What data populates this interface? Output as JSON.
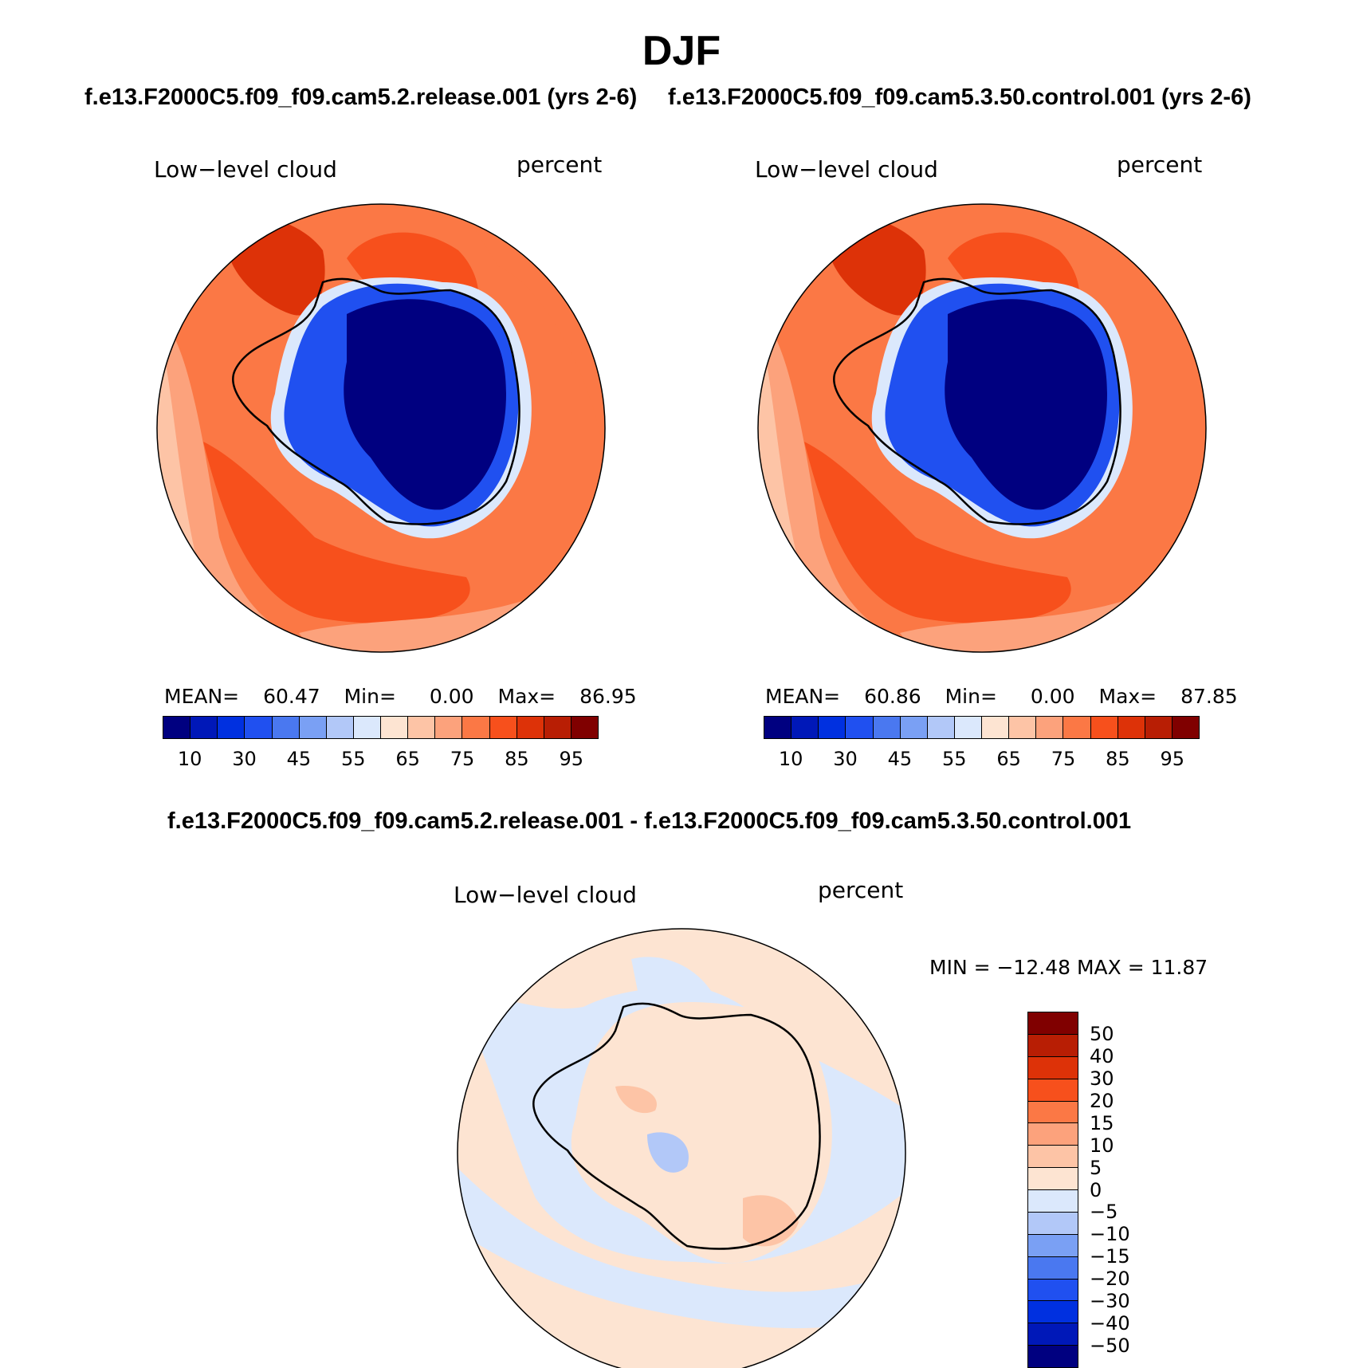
{
  "title": "DJF",
  "panels": {
    "left": {
      "case": "f.e13.F2000C5.f09_f09.cam5.2.release.001 (yrs 2-6)",
      "variable": "Low−level cloud",
      "units": "percent",
      "mean_label": "MEAN=",
      "mean": "60.47",
      "min_label": "Min=",
      "min": "0.00",
      "max_label": "Max=",
      "max": "86.95"
    },
    "right": {
      "case": "f.e13.F2000C5.f09_f09.cam5.3.50.control.001 (yrs 2-6)",
      "variable": "Low−level cloud",
      "units": "percent",
      "mean_label": "MEAN=",
      "mean": "60.86",
      "min_label": "Min=",
      "min": "0.00",
      "max_label": "Max=",
      "max": "87.85"
    },
    "diff": {
      "case": "f.e13.F2000C5.f09_f09.cam5.2.release.001 - f.e13.F2000C5.f09_f09.cam5.3.50.control.001",
      "variable": "Low−level cloud",
      "units": "percent",
      "minmax": "MIN = −12.48 MAX =   11.87"
    }
  },
  "colorbar_abs": {
    "colors": [
      "#000080",
      "#0018b8",
      "#0030e0",
      "#2050f0",
      "#4a78f0",
      "#7aa0f4",
      "#b2c8f8",
      "#dbe8fc",
      "#fde4d2",
      "#fdc4a6",
      "#fca27c",
      "#fb7845",
      "#f7501c",
      "#dd3208",
      "#b81e04",
      "#800000"
    ],
    "tick_labels": [
      "10",
      "30",
      "45",
      "55",
      "65",
      "75",
      "85",
      "95"
    ]
  },
  "colorbar_diff": {
    "colors": [
      "#800000",
      "#b81e04",
      "#dd3208",
      "#f7501c",
      "#fb7845",
      "#fca27c",
      "#fdc4a6",
      "#fde4d2",
      "#dbe8fc",
      "#b2c8f8",
      "#7aa0f4",
      "#4a78f0",
      "#2050f0",
      "#0030e0",
      "#0018b8",
      "#000080"
    ],
    "tick_labels": [
      "50",
      "40",
      "30",
      "20",
      "15",
      "10",
      "5",
      "0",
      "−5",
      "−10",
      "−15",
      "−20",
      "−30",
      "−40",
      "−50"
    ]
  }
}
